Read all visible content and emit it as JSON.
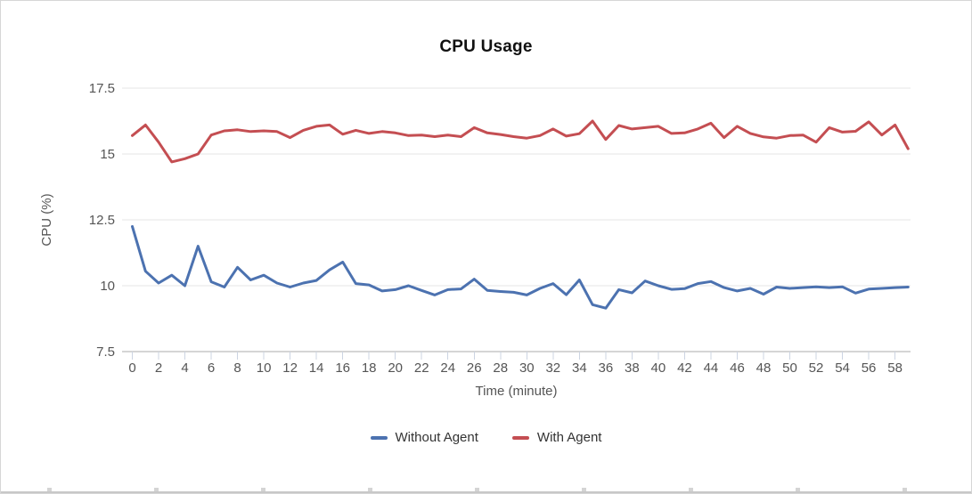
{
  "title": "CPU Usage",
  "axes": {
    "x_title": "Time (minute)",
    "y_title": "CPU (%)"
  },
  "legend": {
    "items": [
      {
        "label": "Without Agent",
        "color": "#4c72b0"
      },
      {
        "label": "With Agent",
        "color": "#c44e52"
      }
    ]
  },
  "chart_data": {
    "type": "line",
    "title": "CPU Usage",
    "xlabel": "Time (minute)",
    "ylabel": "CPU (%)",
    "xlim": [
      0,
      59
    ],
    "ylim": [
      7.5,
      17.5
    ],
    "grid": true,
    "legend_position": "bottom",
    "yticks": [
      {
        "value": 7.5,
        "label": "7.5"
      },
      {
        "value": 10,
        "label": "10"
      },
      {
        "value": 12.5,
        "label": "12.5"
      },
      {
        "value": 15,
        "label": "15"
      },
      {
        "value": 17.5,
        "label": "17.5"
      }
    ],
    "xticks": [
      0,
      2,
      4,
      6,
      8,
      10,
      12,
      14,
      16,
      18,
      20,
      22,
      24,
      26,
      28,
      30,
      32,
      34,
      36,
      38,
      40,
      42,
      44,
      46,
      48,
      50,
      52,
      54,
      56,
      58
    ],
    "x": [
      0,
      1,
      2,
      3,
      4,
      5,
      6,
      7,
      8,
      9,
      10,
      11,
      12,
      13,
      14,
      15,
      16,
      17,
      18,
      19,
      20,
      21,
      22,
      23,
      24,
      25,
      26,
      27,
      28,
      29,
      30,
      31,
      32,
      33,
      34,
      35,
      36,
      37,
      38,
      39,
      40,
      41,
      42,
      43,
      44,
      45,
      46,
      47,
      48,
      49,
      50,
      51,
      52,
      53,
      54,
      55,
      56,
      57,
      58,
      59
    ],
    "series": [
      {
        "name": "Without Agent",
        "color": "#4c72b0",
        "values": [
          12.25,
          10.55,
          10.1,
          10.4,
          10.0,
          11.5,
          10.15,
          9.95,
          10.7,
          10.22,
          10.4,
          10.1,
          9.95,
          10.1,
          10.2,
          10.6,
          10.9,
          10.08,
          10.03,
          9.8,
          9.85,
          10.0,
          9.82,
          9.65,
          9.85,
          9.88,
          10.25,
          9.82,
          9.78,
          9.75,
          9.65,
          9.9,
          10.08,
          9.66,
          10.22,
          9.28,
          9.15,
          9.85,
          9.73,
          10.18,
          10.0,
          9.86,
          9.89,
          10.08,
          10.16,
          9.93,
          9.8,
          9.9,
          9.68,
          9.95,
          9.9,
          9.93,
          9.96,
          9.93,
          9.96,
          9.72,
          9.87,
          9.9,
          9.93,
          9.95
        ]
      },
      {
        "name": "With Agent",
        "color": "#c44e52",
        "values": [
          15.7,
          16.1,
          15.45,
          14.7,
          14.82,
          15.0,
          15.72,
          15.88,
          15.92,
          15.85,
          15.88,
          15.85,
          15.62,
          15.9,
          16.05,
          16.1,
          15.75,
          15.9,
          15.78,
          15.85,
          15.8,
          15.7,
          15.72,
          15.66,
          15.72,
          15.66,
          16.0,
          15.8,
          15.74,
          15.66,
          15.6,
          15.7,
          15.95,
          15.68,
          15.77,
          16.25,
          15.55,
          16.08,
          15.95,
          16.0,
          16.05,
          15.78,
          15.8,
          15.95,
          16.17,
          15.62,
          16.05,
          15.78,
          15.65,
          15.6,
          15.7,
          15.72,
          15.45,
          16.0,
          15.83,
          15.86,
          16.22,
          15.72,
          16.1,
          15.2
        ]
      }
    ]
  },
  "style": {
    "gridline_color": "#e6e6e6",
    "axisline_color": "#ababab",
    "xtick_mark_color": "#ccd4e2",
    "tick_label_color": "#555555",
    "axis_title_color": "#555555",
    "bottom_tick_xs": [
      52,
      172,
      292,
      412,
      532,
      652,
      772,
      892,
      1012
    ]
  }
}
